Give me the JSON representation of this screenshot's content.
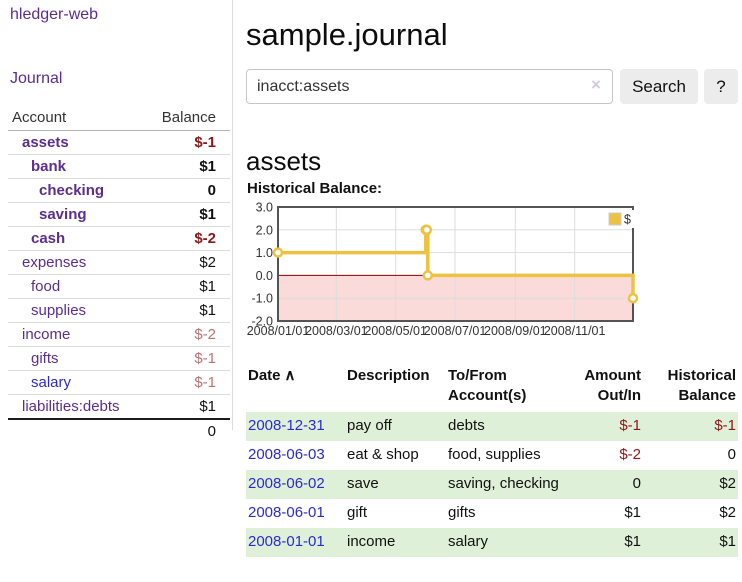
{
  "sidebar": {
    "app_title": "hledger-web",
    "nav": {
      "journal_label": "Journal"
    },
    "table": {
      "account_header": "Account",
      "balance_header": "Balance"
    },
    "accounts": [
      {
        "name": "assets",
        "depth": 1,
        "bold": true,
        "balance": "$-1"
      },
      {
        "name": "bank",
        "depth": 2,
        "bold": true,
        "balance": "$1"
      },
      {
        "name": "checking",
        "depth": 3,
        "bold": true,
        "balance": "0"
      },
      {
        "name": "saving",
        "depth": 3,
        "bold": true,
        "balance": "$1"
      },
      {
        "name": "cash",
        "depth": 2,
        "bold": true,
        "balance": "$-2"
      },
      {
        "name": "expenses",
        "depth": 1,
        "bold": false,
        "balance": "$2"
      },
      {
        "name": "food",
        "depth": 2,
        "bold": false,
        "balance": "$1"
      },
      {
        "name": "supplies",
        "depth": 2,
        "bold": false,
        "balance": "$1"
      },
      {
        "name": "income",
        "depth": 1,
        "bold": false,
        "balance": "$-2"
      },
      {
        "name": "gifts",
        "depth": 2,
        "bold": false,
        "balance": "$-1"
      },
      {
        "name": "salary",
        "depth": 2,
        "bold": false,
        "balance": "$-1",
        "blue": true
      },
      {
        "name": "liabilities:debts",
        "depth": 1,
        "bold": false,
        "balance": "$1"
      }
    ],
    "total": "0"
  },
  "header": {
    "title": "sample.journal"
  },
  "search": {
    "query": "inacct:assets",
    "clear_icon": "×",
    "button_label": "Search",
    "help_label": "?"
  },
  "account_page": {
    "heading": "assets",
    "chart_label": "Historical Balance:"
  },
  "chart_data": {
    "type": "line",
    "steps": true,
    "title": "Historical Balance:",
    "series": [
      {
        "name": "$",
        "color": "#EDC240",
        "points": [
          [
            "2008-01-01",
            1.0
          ],
          [
            "2008-06-01",
            2.0
          ],
          [
            "2008-06-02",
            2.0
          ],
          [
            "2008-06-03",
            0.0
          ],
          [
            "2008-12-31",
            -1.0
          ]
        ]
      }
    ],
    "x_range": [
      "2008-01-01",
      "2008-12-31"
    ],
    "ylim": [
      -2.0,
      3.0
    ],
    "yticks": [
      3.0,
      2.0,
      1.0,
      0.0,
      -1.0,
      -2.0
    ],
    "ytick_labels": [
      "3.0",
      "2.0",
      "1.0",
      "0.0",
      "-1.0",
      "-2.0"
    ],
    "xticks": [
      "2008-01-01",
      "2008-03-01",
      "2008-05-01",
      "2008-07-01",
      "2008-09-01",
      "2008-11-01"
    ],
    "xtick_labels": [
      "2008/01/01",
      "2008/03/01",
      "2008/05/01",
      "2008/07/01",
      "2008/09/01",
      "2008/11/01"
    ],
    "legend": {
      "label": "$",
      "position": "top-right"
    },
    "grid": true,
    "zero_line_color": "#8b0000",
    "negative_region_fill": "#fbdada",
    "frame_color": "#545454",
    "grid_color": "#dddddd"
  },
  "register": {
    "columns": {
      "date": "Date",
      "description": "Description",
      "tofrom_line1": "To/From",
      "tofrom_line2": "Account(s)",
      "amount_line1": "Amount",
      "amount_line2": "Out/In",
      "balance_line1": "Historical",
      "balance_line2": "Balance"
    },
    "sort_icon": "∧",
    "rows": [
      {
        "date": "2008-12-31",
        "description": "pay off",
        "accounts": "debts",
        "amount": "$-1",
        "balance": "$-1"
      },
      {
        "date": "2008-06-03",
        "description": "eat & shop",
        "accounts": "food, supplies",
        "amount": "$-2",
        "balance": "0"
      },
      {
        "date": "2008-06-02",
        "description": "save",
        "accounts": "saving, checking",
        "amount": "0",
        "balance": "$2"
      },
      {
        "date": "2008-06-01",
        "description": "gift",
        "accounts": "gifts",
        "amount": "$1",
        "balance": "$2"
      },
      {
        "date": "2008-01-01",
        "description": "income",
        "accounts": "salary",
        "amount": "$1",
        "balance": "$1"
      }
    ]
  },
  "colors": {
    "link_purple": "#5b2d90",
    "link_blue": "#2a2ad4",
    "negative_strong": "#8f1616",
    "negative_soft": "#bf7070",
    "row_green": "#dff0d8",
    "chart_yellow": "#EDC240"
  }
}
